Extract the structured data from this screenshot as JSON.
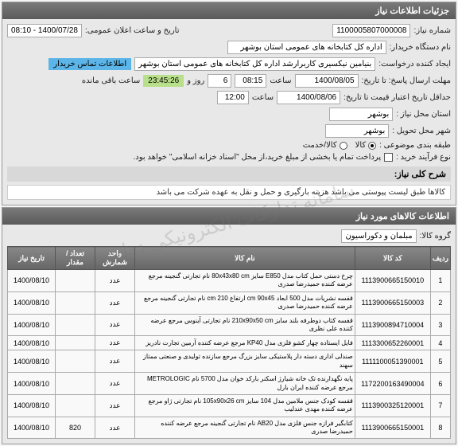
{
  "header": {
    "title": "جزئیات اطلاعات نیاز"
  },
  "info": {
    "need_number_label": "شماره نیاز:",
    "need_number": "1100005807000008",
    "announce_date_label": "تاریخ و ساعت اعلان عمومی:",
    "announce_date": "1400/07/28 - 08:10",
    "buyer_org_label": "نام دستگاه خریدار:",
    "buyer_org": "اداره کل کتابخانه های عمومی استان بوشهر",
    "requester_label": "ایجاد کننده درخواست:",
    "requester": "بنیامین نیکسیری کاربرارشد اداره کل کتابخانه های عمومی استان بوشهر",
    "buyer_contact_label": "اطلاعات تماس خریدار",
    "deadline_answer_label": "مهلت ارسال پاسخ: تا تاریخ:",
    "deadline_answer_date": "1400/08/05",
    "time_label": "ساعت",
    "deadline_answer_time": "08:15",
    "day_label": "روز و",
    "day_count": "6",
    "remain_label": "ساعت باقی مانده",
    "remain_time": "23:45:26",
    "validity_label": "حداقل تاریخ اعتبار قیمت تا تاریخ:",
    "validity_date": "1400/08/06",
    "validity_time": "12:00",
    "need_state_label": "استان محل نیاز :",
    "need_state": "بوشهر",
    "need_city_label": "شهر محل تحویل :",
    "need_city": "بوشهر",
    "budget_label": "طبقه بندی موضوعی :",
    "budget_options": {
      "kala": "کالا",
      "khadamat": "کالا/خدمت"
    },
    "process_label": "نوع فرآیند خرید :",
    "process_note": "پرداخت تمام یا بخشی از مبلغ خرید،از محل \"اسناد خزانه اسلامی\" خواهد بود.",
    "description_label": "شرح کلی نیاز:",
    "description": "کالاها طبق لیست پیوستی می باشد  هزینه بارگیری و حمل و نقل به عهده شرکت می باشد"
  },
  "items": {
    "section_title": "اطلاعات کالاهای مورد نیاز",
    "group_label": "گروه کالا:",
    "group": "مبلمان و دکوراسیون",
    "columns": {
      "idx": "ردیف",
      "code": "کد کالا",
      "name": "نام کالا",
      "unit": "واحد شمارش",
      "qty": "تعداد / مقدار",
      "date": "تاریخ نیاز"
    },
    "rows": [
      {
        "idx": "1",
        "code": "1113900665150010",
        "name": "چرخ دستی حمل کتاب مدل E850 سایز 80x43x80 cm نام تجارتی گنجینه مرجع عرضه کننده حمیدرضا صدری",
        "unit": "عدد",
        "qty": "",
        "date": "1400/08/10"
      },
      {
        "idx": "2",
        "code": "1113900665150003",
        "name": "قفسه نشریات مدل 500 ابعاد cm 90x45 ارتفاع cm 210 نام تجارتی گنجینه مرجع عرضه کننده حمیدرضا صدری",
        "unit": "عدد",
        "qty": "",
        "date": "1400/08/10"
      },
      {
        "idx": "3",
        "code": "1113900894710004",
        "name": "قفسه کتاب دوطرفه بلند سایز 210x90x50 cm نام تجارتی آینوس مرجع عرضه کننده علی نظری",
        "unit": "عدد",
        "qty": "",
        "date": "1400/08/10"
      },
      {
        "idx": "4",
        "code": "1113300652260001",
        "name": "فایل ایستاده چهار کشو فلزی مدل KP40 مرجع عرضه کننده آرمین تجارت نادریز",
        "unit": "عدد",
        "qty": "",
        "date": "1400/08/10"
      },
      {
        "idx": "5",
        "code": "1111100051390001",
        "name": "صندلی اداری دسته دار پلاستیکی سایز بزرگ مرجع سازنده تولیدی و صنعتی ممتاز سهند",
        "unit": "عدد",
        "qty": "",
        "date": "1400/08/10"
      },
      {
        "idx": "6",
        "code": "1172200163490004",
        "name": "پایه نگهدارنده تک خانه شیارژ اسکنر بارکد خوان مدل 5700 نام METROLOGIC مرجع عرضه کننده ایران بارل",
        "unit": "عدد",
        "qty": "",
        "date": "1400/08/10"
      },
      {
        "idx": "7",
        "code": "1113900325120001",
        "name": "قفسه کودک جنس ملامین مدل 104 سایز 105x90x26 cm نام تجارتی ژاو مرجع عرضه کننده مهدی عندلیب",
        "unit": "عدد",
        "qty": "",
        "date": "1400/08/10"
      },
      {
        "idx": "8",
        "code": "1113900665150001",
        "name": "کتابگیر فرازه جنس فلزی مدل AB20 نام تجارتی گنجینه مرجع عرضه کننده حمیدرضا صدری",
        "unit": "عدد",
        "qty": "820",
        "date": "1400/08/10"
      }
    ]
  },
  "watermark": "سامانه تدارکات الکترونیکی دولت"
}
